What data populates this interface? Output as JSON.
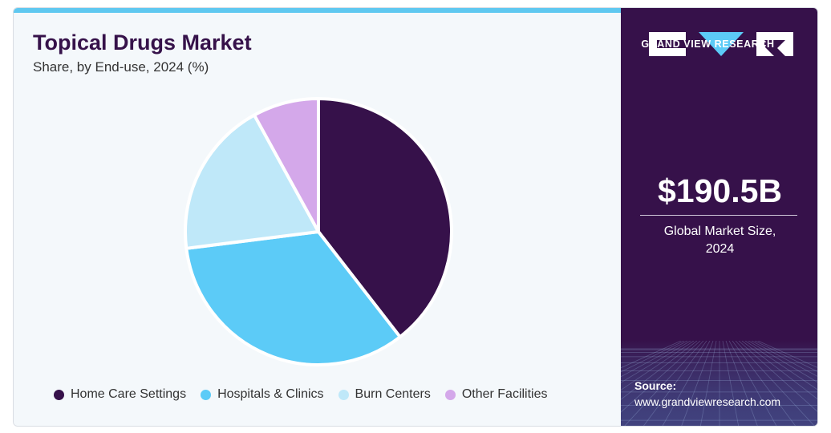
{
  "header": {
    "title": "Topical Drugs Market",
    "subtitle": "Share, by End-use, 2024 (%)"
  },
  "chart_data": {
    "type": "pie",
    "title": "Topical Drugs Market",
    "subtitle": "Share, by End-use, 2024 (%)",
    "categories": [
      "Home Care Settings",
      "Hospitals & Clinics",
      "Burn Centers",
      "Other Facilities"
    ],
    "values": [
      39.5,
      33.5,
      19.0,
      8.0
    ],
    "colors": [
      "#36114a",
      "#5ccbf7",
      "#bfe8f9",
      "#d4a8ea"
    ],
    "legend_position": "bottom"
  },
  "sidebar": {
    "brand": "GRAND VIEW RESEARCH",
    "market_size_value": "$190.5B",
    "market_size_label_line1": "Global Market Size,",
    "market_size_label_line2": "2024",
    "source_label": "Source:",
    "source_url": "www.grandviewresearch.com"
  }
}
